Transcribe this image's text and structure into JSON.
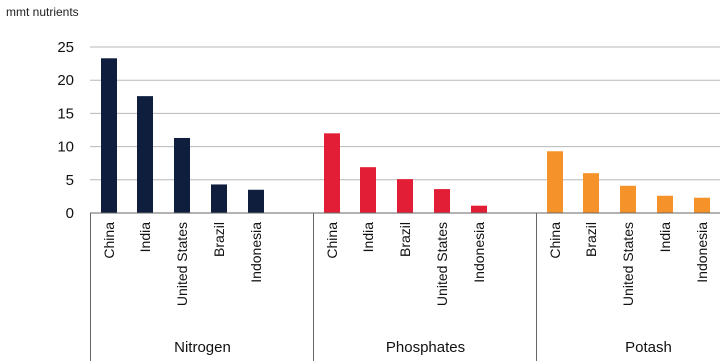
{
  "chart_data": {
    "type": "bar",
    "ylabel": "mmt nutrients",
    "ylim": [
      0,
      25
    ],
    "yticks": [
      0,
      5,
      10,
      15,
      20,
      25
    ],
    "grid": true,
    "groups": [
      {
        "name": "Nitrogen",
        "color": "#0f1e3d",
        "categories": [
          "China",
          "India",
          "United States",
          "Brazil",
          "Indonesia"
        ],
        "values": [
          23.3,
          17.6,
          11.3,
          4.3,
          3.5
        ]
      },
      {
        "name": "Phosphates",
        "color": "#e21d36",
        "categories": [
          "China",
          "India",
          "Brazil",
          "United States",
          "Indonesia"
        ],
        "values": [
          12.0,
          6.9,
          5.1,
          3.6,
          1.1
        ]
      },
      {
        "name": "Potash",
        "color": "#f5932a",
        "categories": [
          "China",
          "Brazil",
          "United States",
          "India",
          "Indonesia"
        ],
        "values": [
          9.3,
          6.0,
          4.1,
          2.6,
          2.3
        ]
      }
    ]
  }
}
